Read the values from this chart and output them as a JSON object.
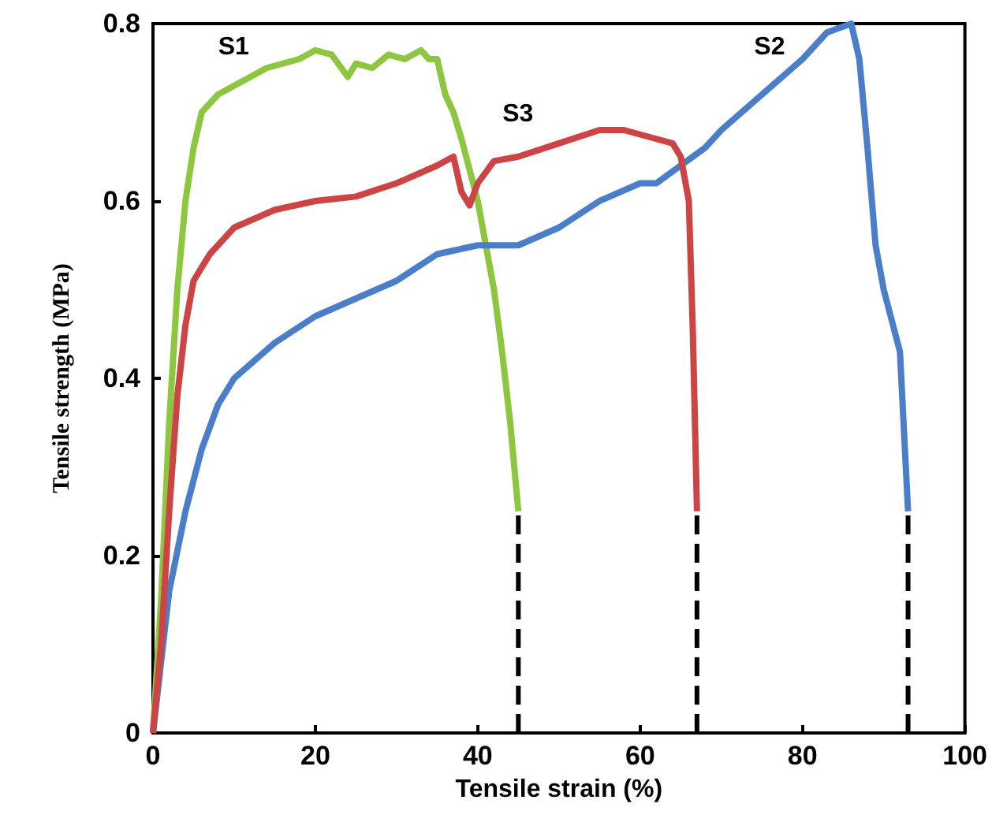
{
  "chart_data": {
    "type": "line",
    "xlabel": "Tensile strain (%)",
    "ylabel": "Tensile strength (MPa)",
    "xlim": [
      0,
      100
    ],
    "xticks": [
      0,
      20,
      40,
      60,
      80,
      100
    ],
    "ylim": [
      0,
      0.8
    ],
    "yticks": [
      0,
      0.2,
      0.4,
      0.6,
      0.8
    ],
    "grid": false,
    "legend": false,
    "marker": "none",
    "line_style": "solid",
    "series": [
      {
        "name": "S1",
        "color": "#8dc63f",
        "x": [
          0,
          1,
          2,
          3,
          4,
          5,
          6,
          8,
          10,
          14,
          18,
          20,
          22,
          24,
          25,
          27,
          29,
          31,
          33,
          34,
          35,
          36,
          37,
          38,
          40,
          42,
          43,
          44,
          45
        ],
        "values": [
          0,
          0.15,
          0.35,
          0.5,
          0.6,
          0.66,
          0.7,
          0.72,
          0.73,
          0.75,
          0.76,
          0.77,
          0.765,
          0.74,
          0.755,
          0.75,
          0.765,
          0.76,
          0.77,
          0.76,
          0.76,
          0.72,
          0.7,
          0.67,
          0.6,
          0.5,
          0.43,
          0.35,
          0.25
        ]
      },
      {
        "name": "S2",
        "color": "#4a7ec8",
        "x": [
          0,
          1,
          2,
          4,
          6,
          8,
          10,
          15,
          20,
          25,
          30,
          35,
          40,
          45,
          50,
          55,
          60,
          62,
          65,
          68,
          70,
          75,
          80,
          83,
          86,
          87,
          88,
          89,
          90,
          92,
          93
        ],
        "values": [
          0,
          0.08,
          0.16,
          0.25,
          0.32,
          0.37,
          0.4,
          0.44,
          0.47,
          0.49,
          0.51,
          0.54,
          0.55,
          0.55,
          0.57,
          0.6,
          0.62,
          0.62,
          0.64,
          0.66,
          0.68,
          0.72,
          0.76,
          0.79,
          0.8,
          0.76,
          0.66,
          0.55,
          0.5,
          0.43,
          0.25
        ]
      },
      {
        "name": "S3",
        "color": "#cc4444",
        "x": [
          0,
          1,
          2,
          3,
          4,
          5,
          7,
          10,
          15,
          20,
          25,
          30,
          35,
          37,
          38,
          39,
          40,
          42,
          45,
          50,
          55,
          58,
          62,
          64,
          65,
          66,
          66.5,
          67
        ],
        "values": [
          0,
          0.1,
          0.25,
          0.38,
          0.46,
          0.51,
          0.54,
          0.57,
          0.59,
          0.6,
          0.605,
          0.62,
          0.64,
          0.65,
          0.61,
          0.595,
          0.62,
          0.645,
          0.65,
          0.665,
          0.68,
          0.68,
          0.67,
          0.665,
          0.65,
          0.6,
          0.45,
          0.25
        ]
      },
      {
        "color": "#000000",
        "line_style": "dashed",
        "x": [
          45,
          45
        ],
        "values": [
          0,
          0.25
        ]
      },
      {
        "color": "#000000",
        "line_style": "dashed",
        "x": [
          67,
          67
        ],
        "values": [
          0,
          0.25
        ]
      },
      {
        "color": "#000000",
        "line_style": "dashed",
        "x": [
          93,
          93
        ],
        "values": [
          0,
          0.25
        ]
      }
    ]
  }
}
